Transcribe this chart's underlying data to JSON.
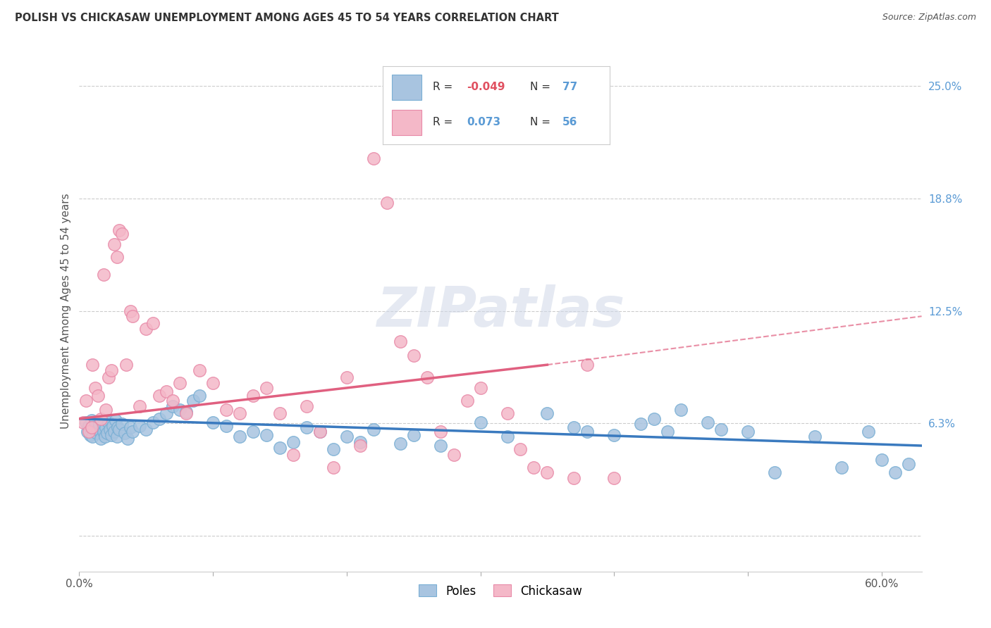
{
  "title": "POLISH VS CHICKASAW UNEMPLOYMENT AMONG AGES 45 TO 54 YEARS CORRELATION CHART",
  "source": "Source: ZipAtlas.com",
  "ylabel": "Unemployment Among Ages 45 to 54 years",
  "xlim": [
    0.0,
    63.0
  ],
  "ylim": [
    -2.0,
    27.0
  ],
  "ytick_vals": [
    0.0,
    6.25,
    12.5,
    18.75,
    25.0
  ],
  "ytick_labels": [
    "",
    "6.3%",
    "12.5%",
    "18.8%",
    "25.0%"
  ],
  "xtick_vals": [
    0.0,
    60.0
  ],
  "xtick_labels": [
    "0.0%",
    "60.0%"
  ],
  "poles_color": "#a8c4e0",
  "poles_edge_color": "#7aafd4",
  "chickasaw_color": "#f4b8c8",
  "chickasaw_edge_color": "#e88aa8",
  "poles_line_color": "#3a7abf",
  "chickasaw_line_color": "#e06080",
  "poles_R": -0.049,
  "poles_N": 77,
  "chickasaw_R": 0.073,
  "chickasaw_N": 56,
  "watermark": "ZIPatlas",
  "poles_line_x0": 0.0,
  "poles_line_y0": 6.5,
  "poles_line_x1": 63.0,
  "poles_line_y1": 5.0,
  "chickasaw_solid_x0": 0.0,
  "chickasaw_solid_y0": 6.5,
  "chickasaw_solid_x1": 35.0,
  "chickasaw_solid_y1": 9.5,
  "chickasaw_dash_x0": 35.0,
  "chickasaw_dash_y0": 9.5,
  "chickasaw_dash_x1": 63.0,
  "chickasaw_dash_y1": 12.2,
  "poles_scatter_x": [
    0.5,
    0.6,
    0.7,
    0.8,
    0.9,
    1.0,
    1.1,
    1.2,
    1.3,
    1.4,
    1.5,
    1.6,
    1.7,
    1.8,
    1.9,
    2.0,
    2.1,
    2.2,
    2.3,
    2.4,
    2.5,
    2.6,
    2.7,
    2.8,
    2.9,
    3.0,
    3.2,
    3.4,
    3.6,
    3.8,
    4.0,
    4.5,
    5.0,
    5.5,
    6.0,
    6.5,
    7.0,
    7.5,
    8.0,
    8.5,
    9.0,
    10.0,
    11.0,
    12.0,
    13.0,
    14.0,
    15.0,
    16.0,
    17.0,
    18.0,
    19.0,
    20.0,
    21.0,
    22.0,
    24.0,
    25.0,
    27.0,
    30.0,
    32.0,
    35.0,
    37.0,
    38.0,
    40.0,
    42.0,
    43.0,
    44.0,
    45.0,
    47.0,
    48.0,
    50.0,
    52.0,
    55.0,
    57.0,
    59.0,
    60.0,
    61.0,
    62.0
  ],
  "poles_scatter_y": [
    6.3,
    5.8,
    6.1,
    5.6,
    6.4,
    5.5,
    6.0,
    6.3,
    5.7,
    5.9,
    6.2,
    5.4,
    6.1,
    5.8,
    5.5,
    6.0,
    5.7,
    6.3,
    5.9,
    5.6,
    6.1,
    5.8,
    6.4,
    5.5,
    6.0,
    5.9,
    6.2,
    5.7,
    5.4,
    6.0,
    5.8,
    6.1,
    5.9,
    6.3,
    6.5,
    6.8,
    7.2,
    7.0,
    6.9,
    7.5,
    7.8,
    6.3,
    6.1,
    5.5,
    5.8,
    5.6,
    4.9,
    5.2,
    6.0,
    5.8,
    4.8,
    5.5,
    5.2,
    5.9,
    5.1,
    5.6,
    5.0,
    6.3,
    5.5,
    6.8,
    6.0,
    5.8,
    5.6,
    6.2,
    6.5,
    5.8,
    7.0,
    6.3,
    5.9,
    5.8,
    3.5,
    5.5,
    3.8,
    5.8,
    4.2,
    3.5,
    4.0
  ],
  "chickasaw_scatter_x": [
    0.3,
    0.5,
    0.7,
    0.9,
    1.0,
    1.2,
    1.4,
    1.6,
    1.8,
    2.0,
    2.2,
    2.4,
    2.6,
    2.8,
    3.0,
    3.2,
    3.5,
    3.8,
    4.0,
    4.5,
    5.0,
    5.5,
    6.0,
    6.5,
    7.0,
    7.5,
    8.0,
    9.0,
    10.0,
    11.0,
    12.0,
    13.0,
    14.0,
    15.0,
    16.0,
    17.0,
    18.0,
    19.0,
    20.0,
    21.0,
    22.0,
    23.0,
    24.0,
    25.0,
    26.0,
    27.0,
    28.0,
    29.0,
    30.0,
    32.0,
    33.0,
    34.0,
    35.0,
    37.0,
    38.0,
    40.0
  ],
  "chickasaw_scatter_y": [
    6.3,
    7.5,
    5.8,
    6.0,
    9.5,
    8.2,
    7.8,
    6.5,
    14.5,
    7.0,
    8.8,
    9.2,
    16.2,
    15.5,
    17.0,
    16.8,
    9.5,
    12.5,
    12.2,
    7.2,
    11.5,
    11.8,
    7.8,
    8.0,
    7.5,
    8.5,
    6.8,
    9.2,
    8.5,
    7.0,
    6.8,
    7.8,
    8.2,
    6.8,
    4.5,
    7.2,
    5.8,
    3.8,
    8.8,
    5.0,
    21.0,
    18.5,
    10.8,
    10.0,
    8.8,
    5.8,
    4.5,
    7.5,
    8.2,
    6.8,
    4.8,
    3.8,
    3.5,
    3.2,
    9.5,
    3.2
  ]
}
